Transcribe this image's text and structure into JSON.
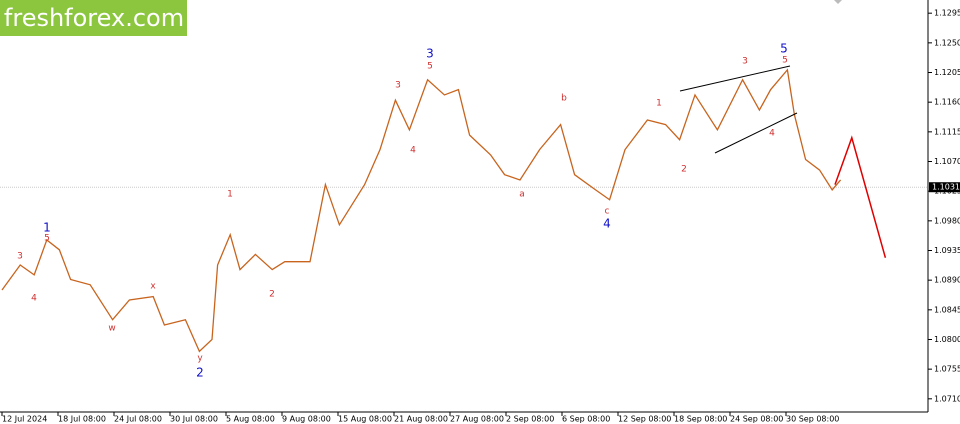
{
  "chart_data": {
    "type": "line",
    "watermark": "freshforex.com",
    "xlim": [
      0,
      66.1
    ],
    "ylim": [
      1.069,
      1.1315
    ],
    "xticks": [
      {
        "value": 0,
        "label": "12 Jul 2024"
      },
      {
        "value": 4,
        "label": "18 Jul 08:00"
      },
      {
        "value": 8,
        "label": "24 Jul 08:00"
      },
      {
        "value": 12,
        "label": "30 Jul 08:00"
      },
      {
        "value": 16,
        "label": "5 Aug 08:00"
      },
      {
        "value": 20,
        "label": "9 Aug 08:00"
      },
      {
        "value": 24,
        "label": "15 Aug 08:00"
      },
      {
        "value": 28,
        "label": "21 Aug 08:00"
      },
      {
        "value": 32,
        "label": "27 Aug 08:00"
      },
      {
        "value": 36,
        "label": "2 Sep 08:00"
      },
      {
        "value": 40,
        "label": "6 Sep 08:00"
      },
      {
        "value": 44,
        "label": "12 Sep 08:00"
      },
      {
        "value": 48,
        "label": "18 Sep 08:00"
      },
      {
        "value": 52,
        "label": "24 Sep 08:00"
      },
      {
        "value": 56,
        "label": "30 Sep 08:00"
      }
    ],
    "yticks": [
      {
        "value": 1.071,
        "label": "1.0710"
      },
      {
        "value": 1.0755,
        "label": "1.0755"
      },
      {
        "value": 1.08,
        "label": "1.0800"
      },
      {
        "value": 1.0845,
        "label": "1.0845"
      },
      {
        "value": 1.089,
        "label": "1.0890"
      },
      {
        "value": 1.0935,
        "label": "1.0935"
      },
      {
        "value": 1.098,
        "label": "1.0980"
      },
      {
        "value": 1.1025,
        "label": "1.1025"
      },
      {
        "value": 1.107,
        "label": "1.1070"
      },
      {
        "value": 1.1115,
        "label": "1.1115"
      },
      {
        "value": 1.116,
        "label": "1.1160"
      },
      {
        "value": 1.1205,
        "label": "1.1205"
      },
      {
        "value": 1.125,
        "label": "1.1250"
      },
      {
        "value": 1.1295,
        "label": "1.1295"
      }
    ],
    "last_price": {
      "value": 1.1031,
      "label": "1.1031"
    },
    "series": [
      {
        "color": "#c8641e",
        "x": [
          0,
          1.3,
          2.3,
          3.2,
          4.1,
          4.9,
          6.3,
          7.9,
          9.1,
          10.8,
          11.6,
          13.1,
          14.1,
          15,
          15.4,
          16.3,
          17,
          18.1,
          19.3,
          20.2,
          22,
          23.1,
          24.1,
          25.9,
          27,
          28.1,
          29.1,
          30.4,
          31.6,
          32.6,
          33.4,
          34.9,
          35.9,
          37,
          38.4,
          39.9,
          40.9,
          42.4,
          43.4,
          44.5,
          46.1,
          47.4,
          48.4,
          49.5,
          51.1,
          52.9,
          54.1,
          54.9,
          56.1,
          56.6,
          57.4,
          58.4,
          59.3,
          59.9
        ],
        "values": [
          1.0875,
          1.0913,
          1.0898,
          1.0951,
          1.0936,
          1.0891,
          1.0883,
          1.083,
          1.086,
          1.0865,
          1.0822,
          1.083,
          1.0782,
          1.08,
          1.0913,
          1.0959,
          1.0906,
          1.0929,
          1.0906,
          1.0918,
          1.0918,
          1.1035,
          1.0974,
          1.1035,
          1.1088,
          1.1163,
          1.1118,
          1.1194,
          1.1171,
          1.1179,
          1.111,
          1.108,
          1.105,
          1.1042,
          1.1088,
          1.1126,
          1.105,
          1.1027,
          1.1012,
          1.1088,
          1.1133,
          1.1126,
          1.1103,
          1.1171,
          1.1118,
          1.1194,
          1.1148,
          1.1179,
          1.1209,
          1.1141,
          1.1073,
          1.1057,
          1.1027,
          1.1042
        ]
      },
      {
        "color": "#e00000",
        "x": [
          59.5,
          60.7,
          63.1
        ],
        "values": [
          1.1035,
          1.1106,
          1.0924
        ]
      }
    ],
    "annotations": [
      "1",
      "5",
      "3",
      "4",
      "w",
      "x",
      "y",
      "2",
      "1",
      "2",
      "3",
      "5",
      "3",
      "4",
      "b",
      "a",
      "c",
      "4",
      "1",
      "2",
      "3",
      "5",
      "5",
      "4"
    ]
  }
}
